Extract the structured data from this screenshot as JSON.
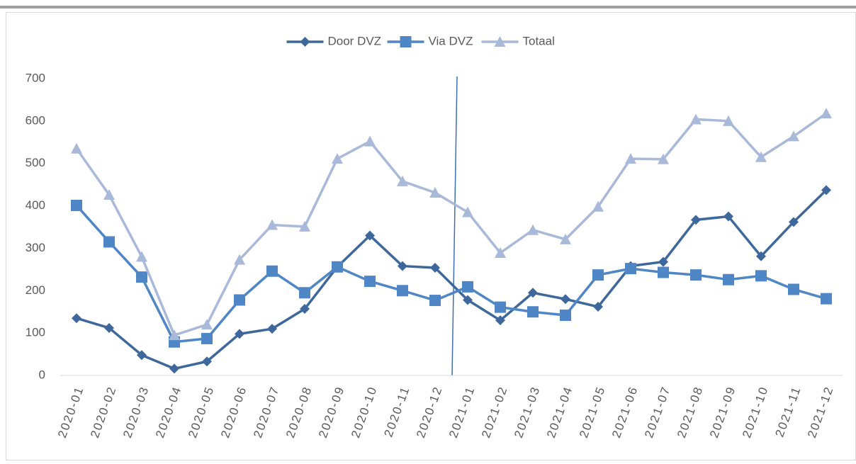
{
  "chart_data": {
    "type": "line",
    "categories": [
      "2020-01",
      "2020-02",
      "2020-03",
      "2020-04",
      "2020-05",
      "2020-06",
      "2020-07",
      "2020-08",
      "2020-09",
      "2020-10",
      "2020-11",
      "2020-12",
      "2021-01",
      "2021-02",
      "2021-03",
      "2021-04",
      "2021-05",
      "2021-06",
      "2021-07",
      "2021-08",
      "2021-09",
      "2021-10",
      "2021-11",
      "2021-12"
    ],
    "series": [
      {
        "name": "Door DVZ",
        "color": "#3e689c",
        "marker": "diamond",
        "values": [
          135,
          112,
          48,
          16,
          33,
          98,
          110,
          157,
          256,
          330,
          258,
          254,
          178,
          130,
          195,
          180,
          162,
          258,
          268,
          367,
          375,
          281,
          362,
          437
        ]
      },
      {
        "name": "Via DVZ",
        "color": "#4f86c6",
        "marker": "square",
        "values": [
          401,
          315,
          232,
          79,
          87,
          178,
          246,
          195,
          256,
          222,
          200,
          177,
          209,
          161,
          150,
          142,
          237,
          252,
          243,
          237,
          226,
          235,
          203,
          181
        ]
      },
      {
        "name": "Totaal",
        "color": "#a9b9d9",
        "marker": "triangle",
        "values": [
          535,
          426,
          280,
          95,
          120,
          273,
          355,
          351,
          511,
          552,
          458,
          431,
          385,
          289,
          343,
          321,
          398,
          511,
          510,
          604,
          600,
          515,
          564,
          618
        ]
      }
    ],
    "ylim": [
      0,
      700
    ],
    "yticks": [
      0,
      100,
      200,
      300,
      400,
      500,
      600,
      700
    ],
    "grid": false,
    "legend": "top"
  }
}
